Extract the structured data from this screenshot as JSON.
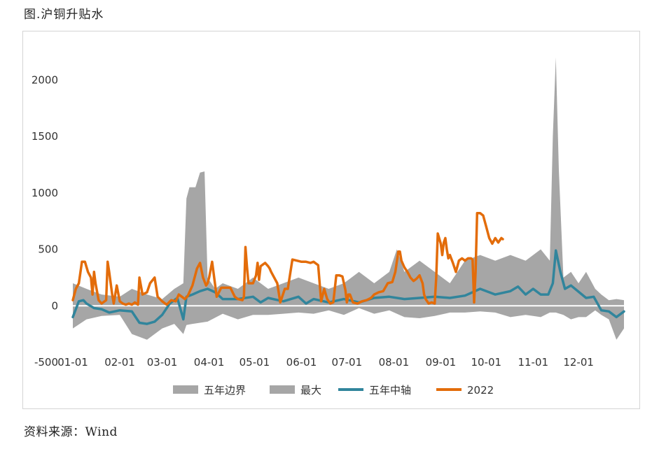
{
  "title": "图.沪铜升贴水",
  "source": "资料来源：Wind",
  "chart_data": {
    "type": "area",
    "title": "",
    "xlabel": "",
    "ylabel": "",
    "ylim": [
      -500,
      2200
    ],
    "yticks": [
      -500,
      0,
      500,
      1000,
      1500,
      2000
    ],
    "x_tick_labels": [
      "01-01",
      "02-01",
      "03-01",
      "04-01",
      "05-01",
      "06-01",
      "07-01",
      "08-01",
      "09-01",
      "10-01",
      "11-01",
      "12-01"
    ],
    "x_unit": "day_of_year",
    "grid": false,
    "legend_position": "bottom",
    "colors": {
      "band": "#a6a6a6",
      "median": "#31859c",
      "current": "#e36c0a",
      "zero_line": "#ffffff"
    },
    "series": [
      {
        "name": "五年边界",
        "kind": "band_lower",
        "x": [
          1,
          10,
          20,
          32,
          40,
          50,
          60,
          68,
          74,
          76,
          80,
          85,
          90,
          100,
          110,
          120,
          130,
          140,
          150,
          160,
          170,
          180,
          190,
          200,
          210,
          220,
          230,
          240,
          250,
          260,
          270,
          280,
          290,
          300,
          310,
          316,
          320,
          325,
          330,
          335,
          340,
          346,
          350,
          355,
          360,
          365
        ],
        "values": [
          -200,
          -120,
          -90,
          -80,
          -250,
          -300,
          -200,
          -160,
          -250,
          -170,
          -160,
          -150,
          -140,
          -70,
          -120,
          -80,
          -80,
          -70,
          -60,
          -70,
          -40,
          -80,
          -20,
          -70,
          -40,
          -100,
          -110,
          -90,
          -60,
          -60,
          -50,
          -60,
          -100,
          -80,
          -100,
          -60,
          -60,
          -80,
          -120,
          -100,
          -100,
          -40,
          -80,
          -120,
          -300,
          -200
        ]
      },
      {
        "name": "最大",
        "kind": "band_upper",
        "x": [
          1,
          10,
          20,
          32,
          40,
          50,
          60,
          68,
          74,
          76,
          78,
          82,
          85,
          88,
          90,
          95,
          100,
          110,
          120,
          130,
          140,
          150,
          160,
          170,
          180,
          190,
          200,
          210,
          215,
          220,
          230,
          240,
          250,
          260,
          270,
          280,
          290,
          300,
          310,
          316,
          318,
          320,
          322,
          325,
          330,
          335,
          340,
          346,
          350,
          355,
          360,
          365
        ],
        "values": [
          200,
          150,
          100,
          80,
          150,
          100,
          60,
          150,
          200,
          950,
          1050,
          1050,
          1180,
          1190,
          250,
          150,
          200,
          150,
          250,
          150,
          200,
          250,
          200,
          150,
          200,
          300,
          200,
          300,
          500,
          300,
          400,
          300,
          200,
          400,
          450,
          400,
          450,
          400,
          500,
          400,
          1500,
          2200,
          1200,
          250,
          300,
          200,
          300,
          150,
          100,
          50,
          60,
          50
        ]
      },
      {
        "name": "五年中轴",
        "kind": "line",
        "x": [
          1,
          5,
          8,
          10,
          15,
          20,
          25,
          32,
          40,
          45,
          50,
          55,
          60,
          65,
          70,
          74,
          76,
          80,
          85,
          90,
          95,
          100,
          110,
          120,
          125,
          130,
          140,
          150,
          155,
          160,
          170,
          180,
          190,
          200,
          210,
          220,
          230,
          240,
          250,
          260,
          270,
          280,
          290,
          295,
          300,
          305,
          310,
          315,
          318,
          320,
          323,
          326,
          330,
          340,
          345,
          350,
          355,
          360,
          365
        ],
        "values": [
          -100,
          40,
          50,
          20,
          -20,
          -30,
          -60,
          -40,
          -50,
          -150,
          -160,
          -140,
          -80,
          20,
          70,
          -120,
          80,
          100,
          130,
          150,
          120,
          60,
          60,
          80,
          30,
          70,
          40,
          80,
          20,
          60,
          30,
          60,
          30,
          70,
          80,
          60,
          70,
          80,
          70,
          90,
          150,
          100,
          130,
          170,
          100,
          150,
          100,
          100,
          200,
          490,
          300,
          150,
          180,
          70,
          80,
          -40,
          -50,
          -100,
          -50
        ]
      },
      {
        "name": "2022",
        "kind": "line",
        "x": [
          1,
          3,
          5,
          7,
          9,
          11,
          13,
          14,
          15,
          16,
          18,
          20,
          23,
          24,
          25,
          27,
          28,
          30,
          32,
          34,
          36,
          38,
          40,
          42,
          44,
          45,
          47,
          50,
          52,
          55,
          57,
          60,
          63,
          66,
          69,
          71,
          73,
          75,
          77,
          80,
          83,
          85,
          87,
          89,
          90,
          91,
          93,
          96,
          99,
          101,
          105,
          108,
          110,
          113,
          114,
          115,
          116,
          117,
          120,
          122,
          123,
          124,
          125,
          128,
          130,
          131,
          132,
          136,
          138,
          141,
          143,
          146,
          149,
          152,
          155,
          158,
          160,
          163,
          165,
          167,
          169,
          171,
          173,
          175,
          177,
          179,
          181,
          182,
          183,
          184,
          186,
          189,
          192,
          195,
          198,
          200,
          203,
          206,
          209,
          212,
          214,
          216,
          217,
          218,
          220,
          222,
          224,
          226,
          228,
          230,
          232,
          233,
          234,
          236,
          238,
          240,
          241,
          242,
          244,
          245,
          246,
          247,
          248,
          249,
          250,
          252,
          254,
          256,
          258,
          260,
          262,
          264,
          265,
          266,
          267,
          268,
          270,
          272,
          274,
          276,
          278,
          280,
          282,
          284,
          285
        ],
        "values": [
          50,
          150,
          200,
          390,
          390,
          300,
          250,
          100,
          300,
          200,
          50,
          20,
          50,
          390,
          300,
          100,
          20,
          180,
          40,
          20,
          10,
          20,
          10,
          30,
          10,
          250,
          100,
          120,
          200,
          250,
          80,
          40,
          10,
          50,
          40,
          100,
          80,
          60,
          90,
          180,
          330,
          380,
          250,
          180,
          200,
          250,
          390,
          80,
          160,
          160,
          160,
          80,
          60,
          50,
          80,
          520,
          350,
          200,
          200,
          270,
          380,
          230,
          350,
          380,
          350,
          330,
          300,
          200,
          30,
          150,
          150,
          410,
          400,
          390,
          390,
          380,
          390,
          360,
          40,
          150,
          60,
          20,
          30,
          270,
          270,
          260,
          140,
          30,
          100,
          100,
          30,
          20,
          40,
          50,
          70,
          100,
          120,
          130,
          200,
          210,
          300,
          480,
          480,
          400,
          340,
          300,
          250,
          220,
          240,
          270,
          200,
          100,
          60,
          20,
          30,
          20,
          250,
          640,
          550,
          450,
          560,
          600,
          500,
          420,
          450,
          380,
          300,
          400,
          420,
          400,
          420,
          420,
          410,
          30,
          300,
          820,
          820,
          800,
          700,
          600,
          550,
          600,
          560,
          600,
          590
        ]
      }
    ]
  }
}
